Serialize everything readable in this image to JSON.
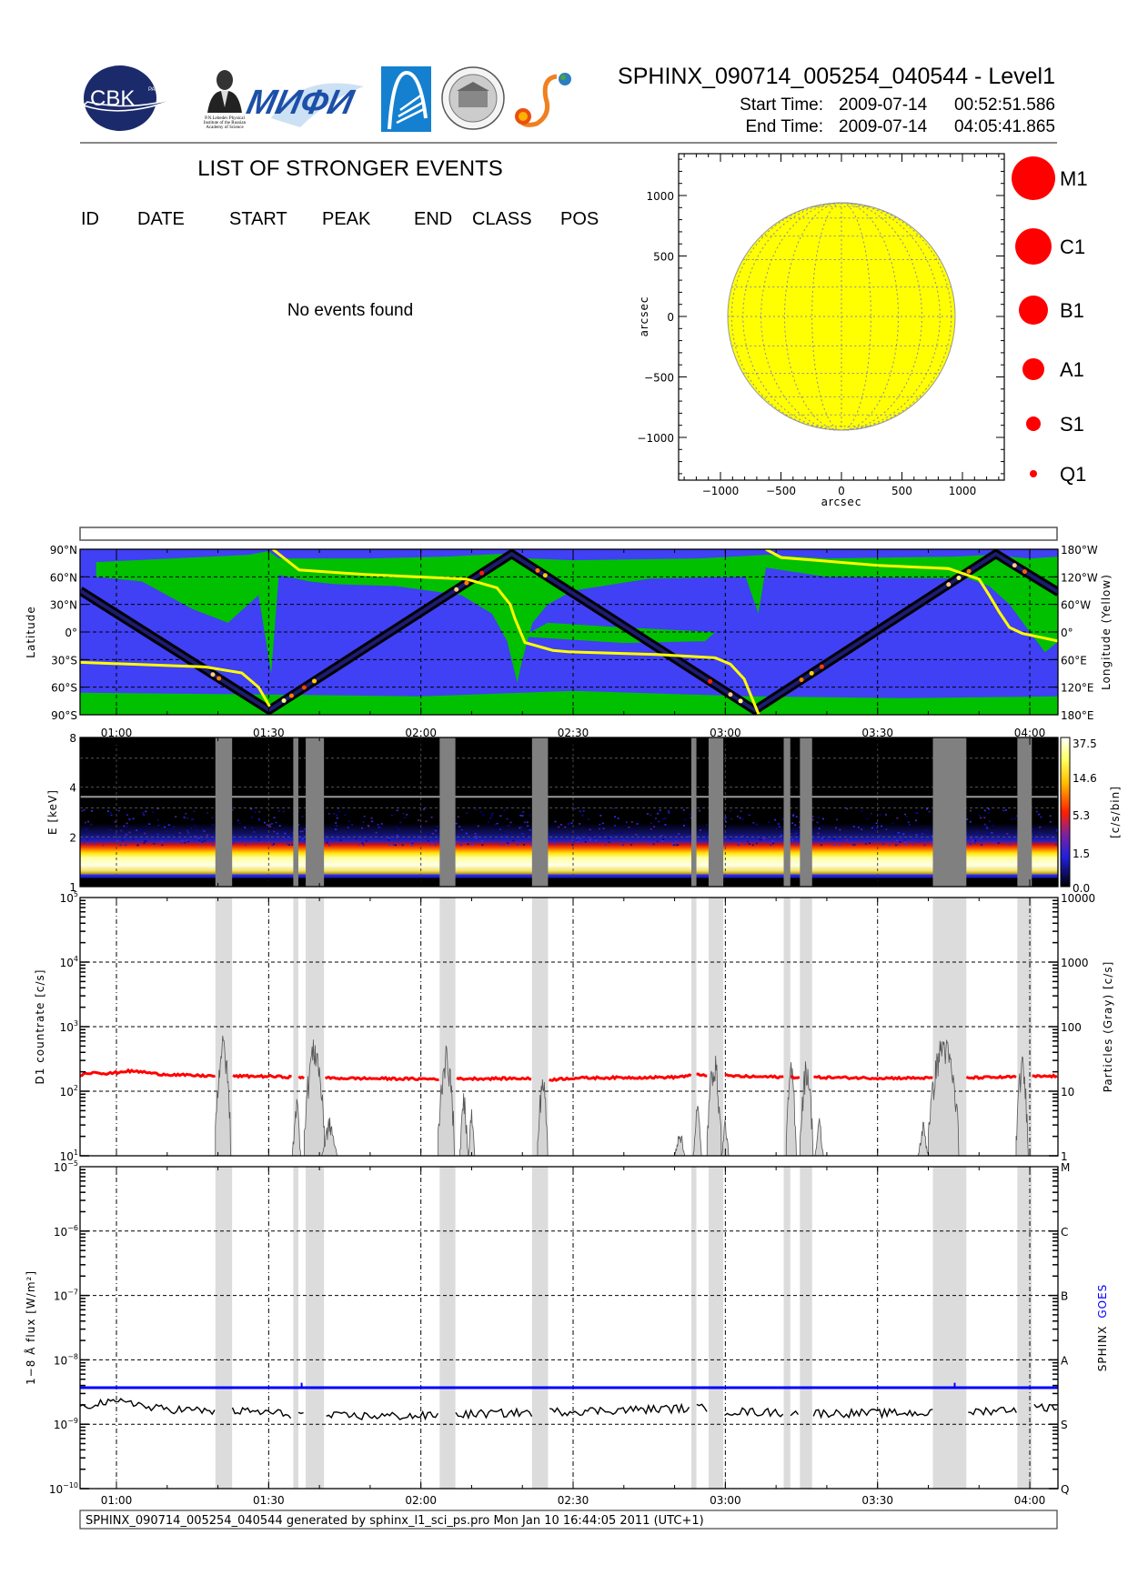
{
  "header": {
    "title": "SPHINX_090714_005254_040544 - Level1",
    "start_label": "Start Time:",
    "start_date": "2009-07-14",
    "start_time": "00:52:51.586",
    "end_label": "End Time:",
    "end_date": "2009-07-14",
    "end_time": "04:05:41.865",
    "logos": {
      "cbk": "CBK",
      "cbk_sub": "PAN",
      "lebedev": [
        "P.N.Lebedev Physical",
        "Institute of the Russian",
        "Academy of Science"
      ],
      "mifi": "МИФИ"
    }
  },
  "events": {
    "title": "LIST OF STRONGER EVENTS",
    "columns": [
      "ID",
      "DATE",
      "START",
      "PEAK",
      "END",
      "CLASS",
      "POS"
    ],
    "empty_message": "No events found"
  },
  "time_axis": {
    "range_minutes": [
      52.86,
      245.7
    ],
    "tick_minutes": [
      60,
      90,
      120,
      150,
      180,
      210,
      240
    ],
    "tick_labels": [
      "01:00",
      "01:30",
      "02:00",
      "02:30",
      "03:00",
      "03:30",
      "04:00"
    ],
    "data_gaps_minutes": [
      [
        79.5,
        82.8
      ],
      [
        94.85,
        95.85
      ],
      [
        97.3,
        100.9
      ],
      [
        123.7,
        126.8
      ],
      [
        141.9,
        145.05
      ],
      [
        173.3,
        174.3
      ],
      [
        176.7,
        179.6
      ],
      [
        191.5,
        192.8
      ],
      [
        194.7,
        197.1
      ],
      [
        220.9,
        227.5
      ],
      [
        237.55,
        240.4
      ]
    ]
  },
  "chart_data": [
    {
      "type": "scatter",
      "name": "solar-disk",
      "xlabel": "arcsec",
      "ylabel": "arcsec",
      "xlim": [
        -1346,
        1346
      ],
      "ylim": [
        -1346,
        1346
      ],
      "xticks": [
        -1000,
        -500,
        0,
        500,
        1000
      ],
      "xtick_labels": [
        "−1000",
        "−500",
        "0",
        "500",
        "1000"
      ],
      "yticks": [
        1000,
        500,
        0,
        -500,
        -1000
      ],
      "ytick_labels": [
        "1000",
        "500",
        "0",
        "−500",
        "−1000"
      ],
      "disk_radius_arcsec": 940,
      "disk_color": "#ffff00",
      "grid_color": "#8a8ab0",
      "events": [],
      "legend": {
        "labels": [
          "M1",
          "C1",
          "B1",
          "A1",
          "S1",
          "Q1"
        ],
        "relative_size": [
          6,
          5,
          4,
          3,
          2,
          1
        ],
        "color": "#ff0000"
      }
    },
    {
      "type": "line",
      "name": "orbit-map",
      "ylabel": "Latitude",
      "ylabel_right": "Longitude (Yellow)",
      "lat_ticks": [
        90,
        60,
        30,
        0,
        -30,
        -60,
        -90
      ],
      "lat_tick_labels": [
        "90°N",
        "60°N",
        "30°N",
        "0°",
        "30°S",
        "60°S",
        "90°S"
      ],
      "lon_tick_labels": [
        "180°W",
        "120°W",
        "60°W",
        "0°",
        "60°E",
        "120°E",
        "180°E"
      ],
      "colors": {
        "background": "#4040f4",
        "particles": "#00c000",
        "track": "#000000",
        "track_core": "#1c1c70",
        "longitude": "#ffff00"
      },
      "track_lat": [
        [
          52.86,
          45
        ],
        [
          90.1,
          -85
        ],
        [
          137.9,
          85
        ],
        [
          185.8,
          -85
        ],
        [
          233.3,
          85
        ],
        [
          245.7,
          43
        ]
      ],
      "track_markers": [
        [
          79,
          "#ffd080"
        ],
        [
          80.2,
          "#ff8000"
        ],
        [
          93,
          "#ffff80"
        ],
        [
          94.5,
          "#ff8000"
        ],
        [
          97,
          "#ff4000"
        ],
        [
          99,
          "#ffd000"
        ],
        [
          127,
          "#ffd080"
        ],
        [
          129,
          "#ff8000"
        ],
        [
          132,
          "#ff2000"
        ],
        [
          143,
          "#ff8000"
        ],
        [
          144.5,
          "#ffd000"
        ],
        [
          177,
          "#ff2000"
        ],
        [
          181,
          "#ffd080"
        ],
        [
          183,
          "#ffff80"
        ],
        [
          195,
          "#ff8000"
        ],
        [
          197,
          "#ffd000"
        ],
        [
          199,
          "#ff4000"
        ],
        [
          224,
          "#ffd080"
        ],
        [
          226,
          "#ffff80"
        ],
        [
          228,
          "#ff8000"
        ],
        [
          237,
          "#ffd080"
        ],
        [
          239,
          "#ff6000"
        ]
      ],
      "longitude_segments": [
        [
          [
            52.9,
            -66
          ],
          [
            77.5,
            -76
          ],
          [
            84.7,
            -89
          ],
          [
            88,
            -120
          ],
          [
            90.2,
            -162
          ]
        ],
        [
          [
            90.8,
            180
          ],
          [
            96,
            135
          ],
          [
            109,
            125
          ],
          [
            129,
            115
          ],
          [
            135,
            96
          ],
          [
            137.6,
            60
          ],
          [
            138.5,
            30
          ],
          [
            140.5,
            -23
          ],
          [
            146,
            -40
          ],
          [
            149,
            -43
          ],
          [
            166.5,
            -49
          ],
          [
            178,
            -56
          ],
          [
            181,
            -70
          ],
          [
            183.7,
            -102
          ],
          [
            186.6,
            -180
          ]
        ],
        [
          [
            188,
            180
          ],
          [
            191,
            162
          ],
          [
            210,
            145
          ],
          [
            224,
            138
          ],
          [
            230,
            115
          ],
          [
            232,
            80
          ],
          [
            234,
            43
          ],
          [
            236,
            10
          ],
          [
            238.5,
            -3
          ],
          [
            245.7,
            -20
          ]
        ]
      ],
      "particle_regions": [
        [
          [
            52.86,
            -66
          ],
          [
            90,
            -68
          ],
          [
            120,
            -70
          ],
          [
            150,
            -64
          ],
          [
            185,
            -70
          ],
          [
            215,
            -72
          ],
          [
            245.7,
            -70
          ],
          [
            245.7,
            -90
          ],
          [
            52.86,
            -90
          ]
        ],
        [
          [
            56,
            76
          ],
          [
            86,
            84
          ],
          [
            90,
            88
          ],
          [
            92,
            80
          ],
          [
            110,
            80
          ],
          [
            125,
            82
          ],
          [
            136,
            85
          ],
          [
            141,
            80
          ],
          [
            150,
            78
          ],
          [
            175,
            80
          ],
          [
            188,
            84
          ],
          [
            200,
            80
          ],
          [
            225,
            82
          ],
          [
            232,
            84
          ],
          [
            240,
            80
          ],
          [
            245.7,
            82
          ],
          [
            245.7,
            -10
          ],
          [
            243,
            -22
          ],
          [
            240,
            0
          ],
          [
            236,
            30
          ],
          [
            232,
            50
          ],
          [
            228,
            58
          ],
          [
            200,
            60
          ],
          [
            188,
            70
          ],
          [
            186.5,
            20
          ],
          [
            184,
            60
          ],
          [
            165,
            58
          ],
          [
            150,
            45
          ],
          [
            145,
            30
          ],
          [
            142,
            10
          ],
          [
            140,
            -30
          ],
          [
            139,
            -55
          ],
          [
            137,
            -10
          ],
          [
            134,
            20
          ],
          [
            128,
            40
          ],
          [
            115,
            50
          ],
          [
            103,
            52
          ],
          [
            98,
            55
          ],
          [
            92,
            62
          ],
          [
            90.5,
            -45
          ],
          [
            88,
            40
          ],
          [
            82,
            10
          ],
          [
            75,
            25
          ],
          [
            65,
            55
          ],
          [
            56,
            60
          ]
        ],
        [
          [
            140,
            -5
          ],
          [
            160,
            -12
          ],
          [
            176,
            -10
          ],
          [
            178,
            0
          ],
          [
            160,
            5
          ],
          [
            145,
            10
          ]
        ]
      ]
    },
    {
      "type": "heatmap",
      "name": "spectrogram",
      "ylabel": "E [keV]",
      "ylim": [
        1,
        8
      ],
      "ytick_values": [
        8,
        4,
        2,
        1
      ],
      "ytick_labels": [
        "8",
        "4",
        "2",
        "1"
      ],
      "colorbar_label": "[c/s/bin]",
      "colorbar_ticks": [
        "37.5",
        "14.6",
        "5.3",
        "1.5",
        "0.0"
      ],
      "peak_band_keV": [
        1.2,
        1.7
      ],
      "threshold_line_keV": 3.5,
      "gap_color": "#808080"
    },
    {
      "type": "line",
      "name": "d1-countrate",
      "ylabel": "D1 countrate [c/s]",
      "ylabel_right": "Particles (Gray) [c/s]",
      "ylim": [
        10,
        100000
      ],
      "ytick_base": "10",
      "ytick_exponents": [
        "1",
        "2",
        "3",
        "4",
        "5"
      ],
      "ytick_right_labels": [
        "1",
        "10",
        "100",
        "1000",
        "10000"
      ],
      "countrate_color": "#ff0000",
      "countrate": [
        [
          53,
          180
        ],
        [
          56,
          200
        ],
        [
          58,
          185
        ],
        [
          62,
          205
        ],
        [
          65,
          200
        ],
        [
          68,
          185
        ],
        [
          75,
          175
        ],
        [
          80,
          172
        ],
        [
          90,
          170
        ],
        [
          100,
          160
        ],
        [
          120,
          155
        ],
        [
          140,
          158
        ],
        [
          145,
          150
        ],
        [
          150,
          160
        ],
        [
          170,
          165
        ],
        [
          175,
          180
        ],
        [
          185,
          168
        ],
        [
          195,
          165
        ],
        [
          210,
          160
        ],
        [
          225,
          160
        ],
        [
          235,
          165
        ],
        [
          245.7,
          172
        ]
      ],
      "particle_bursts": [
        [
          81,
          1.5,
          74
        ],
        [
          95.5,
          0.8,
          8
        ],
        [
          99,
          2,
          65
        ],
        [
          102,
          1.5,
          3
        ],
        [
          125,
          1.6,
          50
        ],
        [
          128.5,
          0.8,
          9
        ],
        [
          130,
          0.6,
          5
        ],
        [
          144,
          1,
          20
        ],
        [
          171,
          1,
          2
        ],
        [
          174.5,
          0.8,
          6
        ],
        [
          177.8,
          1.4,
          40
        ],
        [
          180,
          0.7,
          3
        ],
        [
          193,
          1,
          28
        ],
        [
          196,
          1.3,
          32
        ],
        [
          198.5,
          0.8,
          3
        ],
        [
          219,
          1,
          2.5
        ],
        [
          223,
          3,
          75
        ],
        [
          238.5,
          1.2,
          35
        ]
      ]
    },
    {
      "type": "line",
      "name": "xray-flux",
      "ylabel": "1−8 Å flux [W/m²]",
      "ylim": [
        1e-10,
        1e-05
      ],
      "ytick_base": "10",
      "ytick_exponents": [
        "−5",
        "−6",
        "−7",
        "−8",
        "−9",
        "−10"
      ],
      "class_labels": [
        "M",
        "C",
        "B",
        "A",
        "S",
        "Q"
      ],
      "legend": [
        {
          "name": "SPHINX",
          "color": "#000000"
        },
        {
          "name": "GOES",
          "color": "#0000ff"
        }
      ],
      "sphinx": [
        [
          53,
          1.7e-09
        ],
        [
          56,
          2.2e-09
        ],
        [
          60,
          2.1e-09
        ],
        [
          62,
          2.4e-09
        ],
        [
          66,
          1.8e-09
        ],
        [
          79,
          1.6e-09
        ],
        [
          85,
          1.6e-09
        ],
        [
          100,
          1.35e-09
        ],
        [
          120,
          1.35e-09
        ],
        [
          130,
          1.45e-09
        ],
        [
          150,
          1.6e-09
        ],
        [
          175,
          1.8e-09
        ],
        [
          180,
          1.6e-09
        ],
        [
          195,
          1.5e-09
        ],
        [
          215,
          1.5e-09
        ],
        [
          225,
          1.5e-09
        ],
        [
          240,
          1.8e-09
        ],
        [
          245.7,
          1.9e-09
        ]
      ],
      "goes_level": 3.7e-09,
      "goes_spikes": [
        [
          96.5,
          4.4e-09
        ],
        [
          225.2,
          4.4e-09
        ]
      ]
    }
  ],
  "footer": {
    "text": "SPHINX_090714_005254_040544 generated by sphinx_l1_sci_ps.pro Mon Jan 10 16:44:05 2011 (UTC+1)"
  }
}
